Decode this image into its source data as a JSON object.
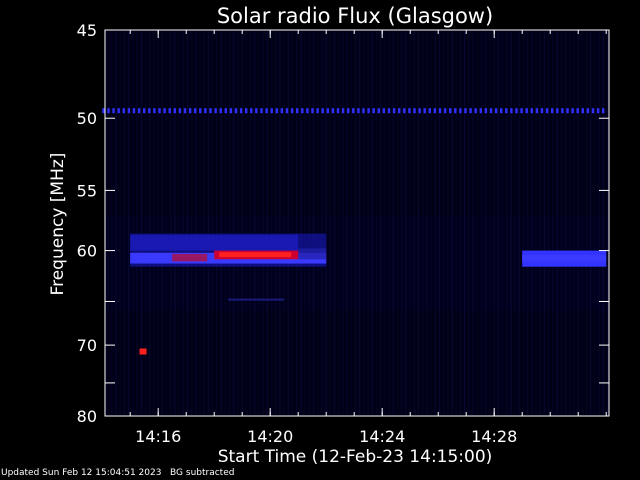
{
  "chart_data": {
    "type": "heatmap",
    "title": "Solar radio Flux (Glasgow)",
    "xlabel": "Start Time (12-Feb-23 14:15:00)",
    "ylabel": "Frequency [MHz]",
    "x_range_minutes_after_14_00": [
      14.1,
      32.1
    ],
    "x_ticks": [
      "14:16",
      "14:20",
      "14:24",
      "14:28"
    ],
    "y_scale": "reciprocal",
    "y_range_mhz": [
      45,
      80
    ],
    "y_ticks": [
      "45",
      "50",
      "55",
      "60",
      "70",
      "80"
    ],
    "colorscale": [
      "#000010",
      "#1a1acc",
      "#3a3aff",
      "#cc0033",
      "#ff2020"
    ],
    "features": [
      {
        "name": "continuous interference line",
        "freq_mhz": 49.5,
        "time": [
          "14:14",
          "14:32"
        ],
        "intensity": "medium"
      },
      {
        "name": "band emission",
        "freq_mhz": [
          58.5,
          61.5
        ],
        "time": [
          "14:15",
          "14:22"
        ],
        "intensity": "high"
      },
      {
        "name": "band emission peak",
        "freq_mhz": [
          60.0,
          60.8
        ],
        "time": [
          "14:18",
          "14:21"
        ],
        "intensity": "very high"
      },
      {
        "name": "point burst",
        "freq_mhz": 70.8,
        "time": [
          "14:15:20",
          "14:15:35"
        ],
        "intensity": "very high"
      },
      {
        "name": "band emission",
        "freq_mhz": [
          60.0,
          61.5
        ],
        "time": [
          "14:29",
          "14:32"
        ],
        "intensity": "medium"
      },
      {
        "name": "faint line",
        "freq_mhz": 64.8,
        "time": [
          "14:18:30",
          "14:20:30"
        ],
        "intensity": "low"
      }
    ]
  },
  "footer": "Updated Sun Feb 12 15:04:51 2023   BG subtracted"
}
